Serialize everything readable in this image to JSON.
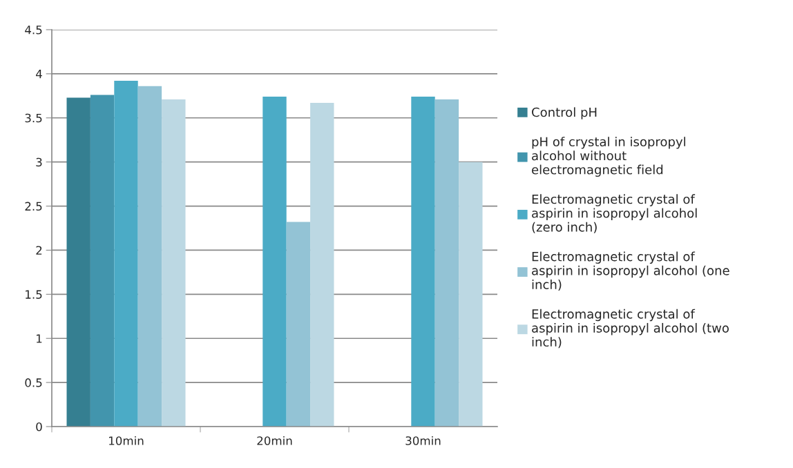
{
  "chart_data": {
    "type": "bar",
    "categories": [
      "10min",
      "20min",
      "30min"
    ],
    "series": [
      {
        "name": "Control pH",
        "color": "#357f91",
        "values": [
          3.73,
          null,
          null
        ]
      },
      {
        "name": "pH of crystal in isopropyl\nalcohol without\nelectromagnetic field",
        "color": "#4295ad",
        "values": [
          3.76,
          null,
          null
        ]
      },
      {
        "name": "Electromagnetic crystal of\naspirin in isopropyl alcohol\n(zero inch)",
        "color": "#4babc6",
        "values": [
          3.92,
          3.74,
          3.74
        ]
      },
      {
        "name": "Electromagnetic crystal of\naspirin in isopropyl alcohol (one\ninch)",
        "color": "#93c3d5",
        "values": [
          3.86,
          2.32,
          3.71
        ]
      },
      {
        "name": "Electromagnetic crystal of\naspirin in isopropyl alcohol (two\ninch)",
        "color": "#bcd8e3",
        "values": [
          3.71,
          3.67,
          3.0
        ]
      }
    ],
    "ylim": [
      0,
      4.5
    ],
    "yticks": [
      0,
      0.5,
      1,
      1.5,
      2,
      2.5,
      3,
      3.5,
      4,
      4.5
    ],
    "grid": "y",
    "legend": "right"
  }
}
